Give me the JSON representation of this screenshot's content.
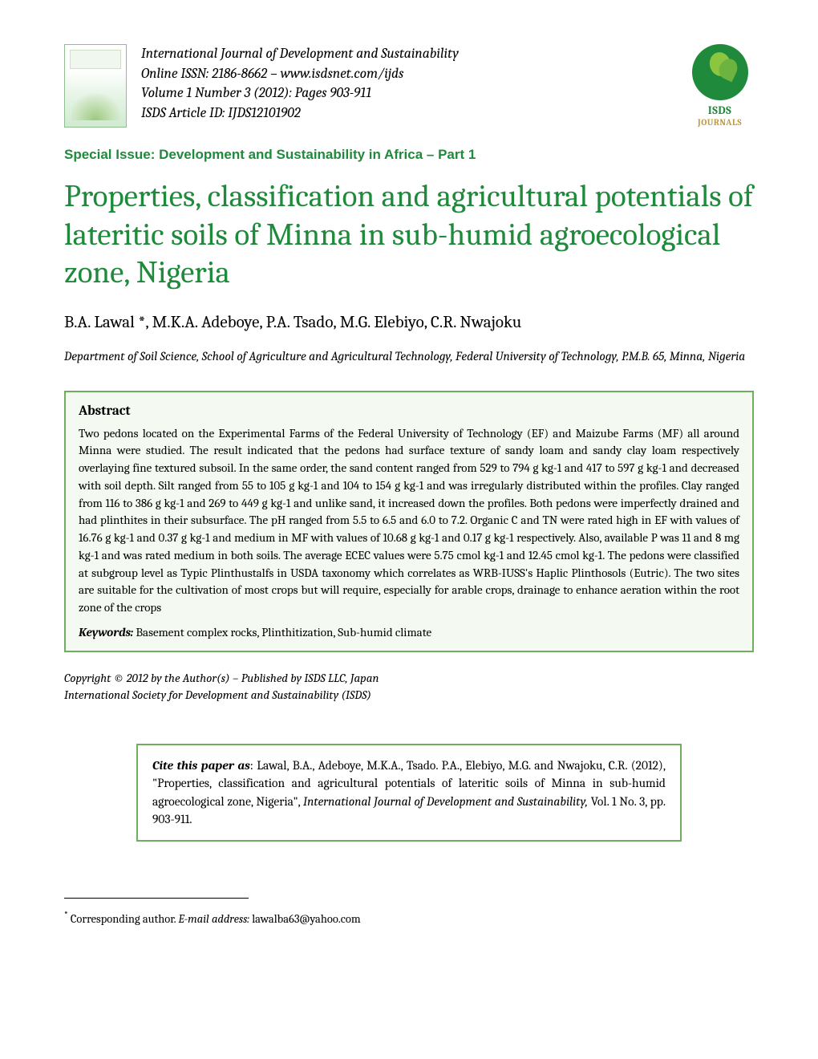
{
  "header": {
    "journal_name": "International Journal of Development and Sustainability",
    "issn_line": "Online ISSN: 2186-8662 – www.isdsnet.com/ijds",
    "volume_line": "Volume 1 Number 3 (2012): Pages 903-911",
    "article_id_line": "ISDS Article ID: IJDS12101902",
    "logo_isds": "ISDS",
    "logo_journals": "JOURNALS"
  },
  "special_issue": "Special Issue: Development and Sustainability in Africa – Part 1",
  "title": "Properties, classification and agricultural potentials of lateritic soils of Minna in sub-humid agroecological zone, Nigeria",
  "authors": "B.A. Lawal *, M.K.A. Adeboye, P.A. Tsado, M.G. Elebiyo, C.R. Nwajoku",
  "affiliation": "Department of Soil Science, School of Agriculture and Agricultural Technology, Federal University of Technology, P.M.B. 65, Minna, Nigeria",
  "abstract": {
    "heading": "Abstract",
    "text": "Two pedons located on the Experimental Farms of the Federal University of Technology (EF) and Maizube Farms (MF) all around Minna were studied. The result indicated that the pedons had surface texture of sandy loam and sandy clay loam respectively overlaying fine textured subsoil. In the same order, the sand content ranged from 529 to 794 g kg-1 and 417 to 597 g kg-1 and decreased with soil depth. Silt ranged from 55 to 105 g kg-1 and 104 to 154 g kg-1 and was irregularly distributed within the profiles. Clay ranged from 116 to 386 g kg-1 and 269 to 449 g kg-1 and unlike sand, it increased down the profiles. Both pedons were imperfectly drained and had plinthites in their subsurface. The pH ranged from 5.5 to 6.5 and 6.0 to 7.2. Organic C and TN were rated high in EF with values of 16.76 g kg-1 and 0.37 g kg-1 and medium in MF with values of 10.68 g kg-1 and 0.17 g kg-1 respectively. Also, available P was 11 and 8 mg kg-1 and was rated medium in both soils. The average ECEC values were 5.75 cmol kg-1 and 12.45 cmol kg-1. The pedons were classified at subgroup level as Typic Plinthustalfs in USDA taxonomy which correlates as WRB-IUSS's Haplic Plinthosols (Eutric). The two sites are suitable for the cultivation of most crops but will require, especially for arable crops, drainage to enhance aeration within the root zone of the crops",
    "keywords_label": "Keywords:",
    "keywords_text": " Basement complex rocks, Plinthitization, Sub-humid climate"
  },
  "copyright": {
    "line1": "Copyright © 2012 by the Author(s) – Published by ISDS LLC, Japan",
    "line2": "International Society for Development and Sustainability (ISDS)"
  },
  "citation": {
    "label": "Cite this paper as",
    "text_before_journal": ": Lawal, B.A., Adeboye, M.K.A., Tsado. P.A., Elebiyo, M.G. and Nwajoku, C.R.  (2012), \"Properties, classification and agricultural potentials of lateritic soils of Minna in sub-humid agroecological zone, Nigeria\", ",
    "journal": "International Journal of Development and Sustainability,",
    "text_after_journal": " Vol. 1 No. 3, pp. 903-911."
  },
  "footnote": {
    "label": "Corresponding author.  ",
    "email_label": "E-mail address:",
    "email": " lawalba63@yahoo.com"
  },
  "colors": {
    "green": "#1f8a3b",
    "box_border": "#6fae5f",
    "box_bg": "#f4f9f1"
  }
}
